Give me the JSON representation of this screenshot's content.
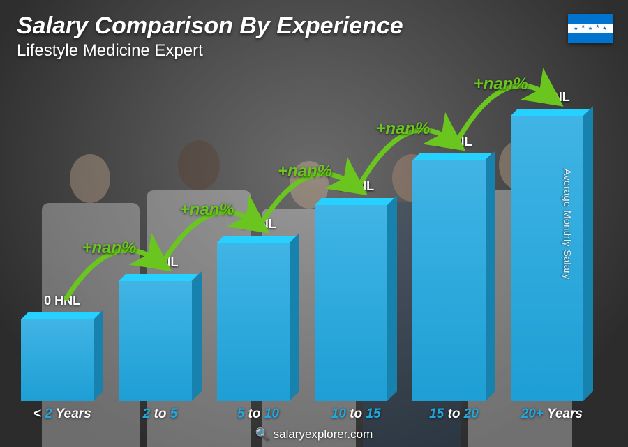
{
  "header": {
    "title": "Salary Comparison By Experience",
    "subtitle": "Lifestyle Medicine Expert"
  },
  "flag": {
    "country": "Honduras",
    "stripe_color": "#0073cf",
    "star_color": "#0073cf"
  },
  "chart": {
    "type": "bar",
    "bar_color": "#1fa7e0",
    "value_text_color": "#ffffff",
    "arrow_color": "#6ac61f",
    "arrow_label_color": "#6ac61f",
    "arrow_label_fontsize": 24,
    "xlabel_color": "#1fa7e0",
    "value_fontsize": 18,
    "xlabel_fontsize": 19,
    "categories": [
      {
        "label_prefix": "<",
        "label_num": "2",
        "label_suffix": "Years",
        "height_pct": 28,
        "value_label": "0 HNL"
      },
      {
        "label_prefix": "",
        "label_num": "2",
        "label_mid": "to",
        "label_num2": "5",
        "label_suffix": "",
        "height_pct": 40,
        "value_label": "0 HNL"
      },
      {
        "label_prefix": "",
        "label_num": "5",
        "label_mid": "to",
        "label_num2": "10",
        "label_suffix": "",
        "height_pct": 52,
        "value_label": "0 HNL"
      },
      {
        "label_prefix": "",
        "label_num": "10",
        "label_mid": "to",
        "label_num2": "15",
        "label_suffix": "",
        "height_pct": 64,
        "value_label": "0 HNL"
      },
      {
        "label_prefix": "",
        "label_num": "15",
        "label_mid": "to",
        "label_num2": "20",
        "label_suffix": "",
        "height_pct": 78,
        "value_label": "0 HNL"
      },
      {
        "label_prefix": "",
        "label_num": "20+",
        "label_mid": "",
        "label_num2": "",
        "label_suffix": "Years",
        "height_pct": 92,
        "value_label": "0 HNL"
      }
    ],
    "arrows": [
      {
        "label": "+nan%"
      },
      {
        "label": "+nan%"
      },
      {
        "label": "+nan%"
      },
      {
        "label": "+nan%"
      },
      {
        "label": "+nan%"
      }
    ],
    "yaxis_label": "Average Monthly Salary"
  },
  "footer": {
    "site": "salaryexplorer.com",
    "icon": "🔍"
  },
  "background": {
    "base_color": "#5a5a5a",
    "people_opacity": 0.35
  }
}
